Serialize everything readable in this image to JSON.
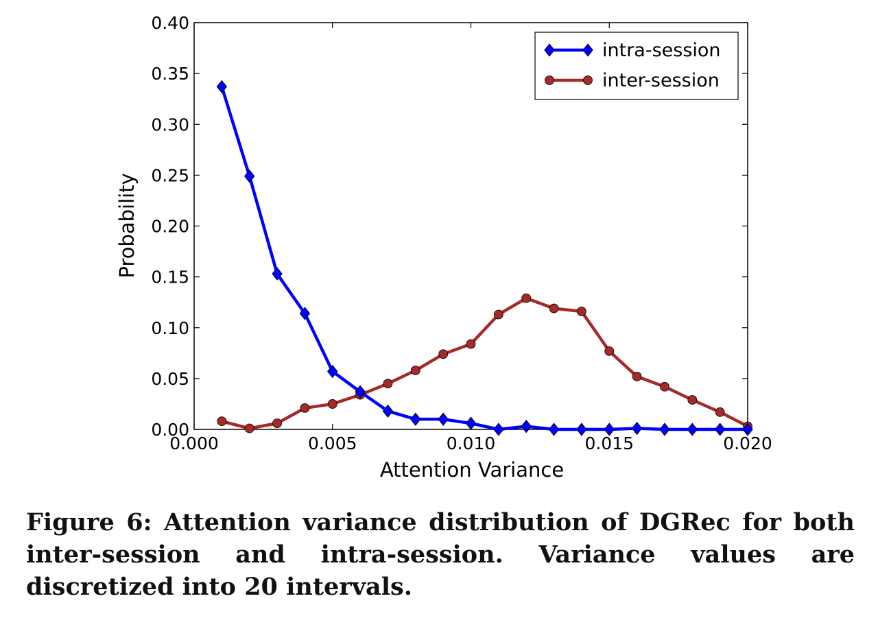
{
  "chart_data": {
    "type": "line",
    "xlabel": "Attention Variance",
    "ylabel": "Probability",
    "xlim": [
      0.0,
      0.02
    ],
    "ylim": [
      0.0,
      0.4
    ],
    "xticks": [
      "0.000",
      "0.005",
      "0.010",
      "0.015",
      "0.020"
    ],
    "yticks": [
      "0.00",
      "0.05",
      "0.10",
      "0.15",
      "0.20",
      "0.25",
      "0.30",
      "0.35",
      "0.40"
    ],
    "grid": false,
    "legend_position": "top-right",
    "x": [
      0.001,
      0.002,
      0.003,
      0.004,
      0.005,
      0.006,
      0.007,
      0.008,
      0.009,
      0.01,
      0.011,
      0.012,
      0.013,
      0.014,
      0.015,
      0.016,
      0.017,
      0.018,
      0.019,
      0.02
    ],
    "series": [
      {
        "name": "intra-session",
        "color": "#0000ff",
        "marker": "diamond",
        "values": [
          0.337,
          0.249,
          0.153,
          0.114,
          0.057,
          0.037,
          0.018,
          0.01,
          0.01,
          0.006,
          0.0,
          0.003,
          0.0,
          0.0,
          0.0,
          0.001,
          0.0,
          0.0,
          0.0,
          0.0
        ]
      },
      {
        "name": "inter-session",
        "color": "#a52a2a",
        "marker": "circle",
        "values": [
          0.008,
          0.001,
          0.006,
          0.021,
          0.025,
          0.034,
          0.045,
          0.058,
          0.074,
          0.084,
          0.113,
          0.129,
          0.119,
          0.116,
          0.077,
          0.052,
          0.042,
          0.029,
          0.017,
          0.003
        ]
      }
    ]
  },
  "caption": "Figure 6: Attention variance distribution of DGRec for both inter-session and intra-session. Variance values are discretized into 20 intervals."
}
